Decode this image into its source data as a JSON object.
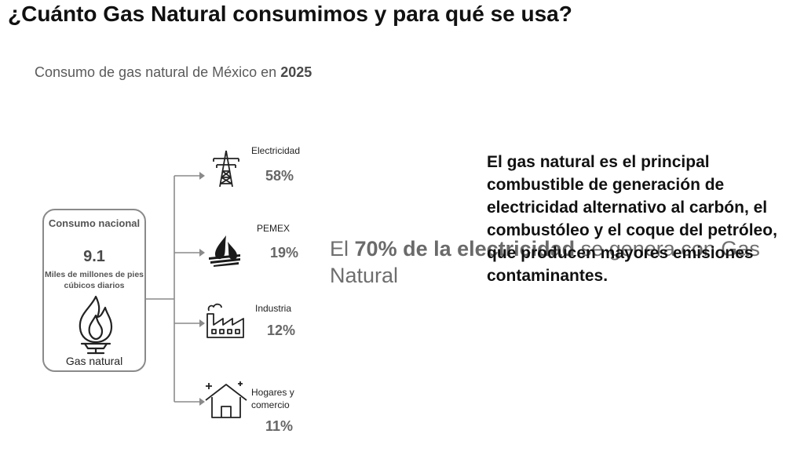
{
  "title": "¿Cuánto Gas Natural consumimos y para qué se usa?",
  "subtitle": {
    "prefix": "Consumo de gas natural de México en",
    "year": "2025"
  },
  "source_box": {
    "label": "Consumo nacional",
    "value": "9.1",
    "units": "Miles de millones de pies cúbicos diarios",
    "name": "Gas natural",
    "icon": "flame-icon"
  },
  "sectors": [
    {
      "name": "Electricidad",
      "pct": "58%",
      "icon": "power-tower-icon"
    },
    {
      "name": "PEMEX",
      "pct": "19%",
      "icon": "pemex-logo-icon"
    },
    {
      "name": "Industria",
      "pct": "12%",
      "icon": "factory-icon"
    },
    {
      "name": "Hogares y comercio",
      "pct": "11%",
      "icon": "house-icon"
    }
  ],
  "highlight": {
    "pre": "El",
    "bold": "70% de la electricidad",
    "post": "se genera con Gas Natural"
  },
  "statement": "El gas natural es el principal combustible de  generación de electricidad alternativo al carbón, el combustóleo y el coque del petróleo, que producen mayores emisiones contaminantes."
}
